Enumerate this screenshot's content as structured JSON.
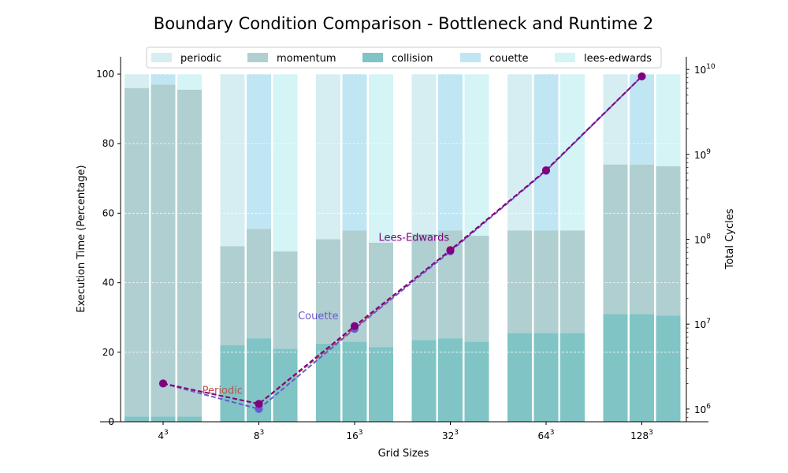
{
  "chart_data": {
    "type": "bar",
    "title": "Boundary Condition Comparison - Bottleneck and Runtime 2",
    "xlabel": "Grid Sizes",
    "ylabel": "Execution Time (Percentage)",
    "y2label": "Total Cycles",
    "categories": [
      {
        "base": "4",
        "exp": "3"
      },
      {
        "base": "8",
        "exp": "3"
      },
      {
        "base": "16",
        "exp": "3"
      },
      {
        "base": "32",
        "exp": "3"
      },
      {
        "base": "64",
        "exp": "3"
      },
      {
        "base": "128",
        "exp": "3"
      }
    ],
    "ylim": [
      0,
      105
    ],
    "yticks": [
      0,
      20,
      40,
      60,
      80,
      100
    ],
    "y2lim_log10": [
      5.85,
      10.15
    ],
    "y2ticks": [
      {
        "base": "10",
        "exp": "6",
        "log": 6
      },
      {
        "base": "10",
        "exp": "7",
        "log": 7
      },
      {
        "base": "10",
        "exp": "8",
        "log": 8
      },
      {
        "base": "10",
        "exp": "9",
        "log": 9
      },
      {
        "base": "10",
        "exp": "10",
        "log": 10
      }
    ],
    "grid": "horizontal-dashed",
    "legend_position": "top",
    "legend": [
      {
        "label": "periodic",
        "color": "#d6eef2"
      },
      {
        "label": "momentum",
        "color": "#b0cfd1"
      },
      {
        "label": "collision",
        "color": "#80c4c5"
      },
      {
        "label": "couette",
        "color": "#c0e6f3"
      },
      {
        "label": "lees-edwards",
        "color": "#d4f4f6"
      }
    ],
    "groups": [
      {
        "bc": "periodic",
        "top_color": "#d6eef2",
        "collision": [
          1.5,
          22,
          22.5,
          23.5,
          25.5,
          31
        ],
        "momentum_top": [
          96,
          50.5,
          52.5,
          54,
          55,
          74
        ]
      },
      {
        "bc": "couette",
        "top_color": "#c0e6f3",
        "collision": [
          1.5,
          24,
          23,
          24,
          25.5,
          31
        ],
        "momentum_top": [
          97,
          55.5,
          55,
          55,
          55,
          74
        ]
      },
      {
        "bc": "lees-edwards",
        "top_color": "#d4f4f6",
        "collision": [
          1.5,
          21,
          21.5,
          23,
          25.5,
          30.5
        ],
        "momentum_top": [
          95.5,
          49,
          51.5,
          53.5,
          55,
          73.5
        ]
      }
    ],
    "lines": [
      {
        "name": "Periodic",
        "color": "#c0504d",
        "cycles": [
          2000000,
          1150000,
          9000000,
          75000000,
          650000000,
          8300000000
        ]
      },
      {
        "name": "Couette",
        "color": "#6a5acd",
        "cycles": [
          2000000,
          1000000,
          8800000,
          72000000,
          640000000,
          8300000000
        ]
      },
      {
        "name": "Lees-Edwards",
        "color": "#800080",
        "cycles": [
          2000000,
          1150000,
          9500000,
          74000000,
          650000000,
          8300000000
        ]
      }
    ],
    "annotations": [
      {
        "text": "Periodic",
        "color": "#c0504d",
        "near_category": 0,
        "y_pct": 8
      },
      {
        "text": "Couette",
        "color": "#6a5acd",
        "near_category": 1,
        "y_pct": 29.5
      },
      {
        "text": "Lees-Edwards",
        "color": "#800080",
        "near_category": 2,
        "y_pct": 52
      }
    ]
  }
}
